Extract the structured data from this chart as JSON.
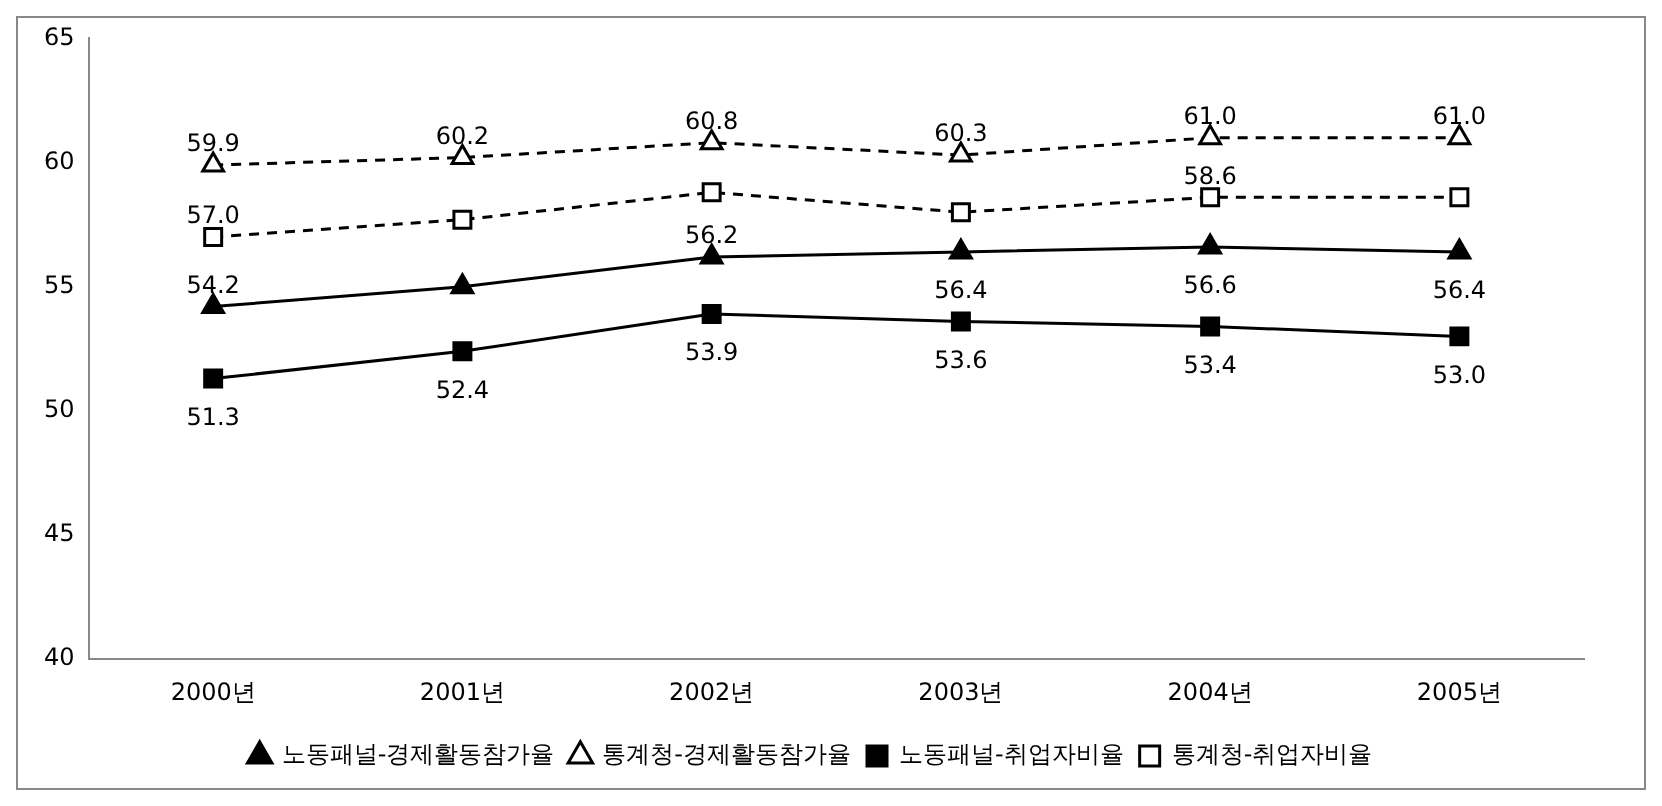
{
  "chart_data": {
    "type": "line",
    "categories": [
      "2000년",
      "2001년",
      "2002년",
      "2003년",
      "2004년",
      "2005년"
    ],
    "series": [
      {
        "name": "노동패널-경제활동참가율",
        "color": "#000000",
        "marker": "triangle",
        "line_style": "solid",
        "values": [
          54.2,
          55.0,
          56.2,
          56.4,
          56.6,
          56.4
        ],
        "value_labels": [
          "54.2",
          null,
          "56.2",
          "56.4",
          "56.6",
          "56.4"
        ]
      },
      {
        "name": "통계청-경제활동참가율",
        "color": "#000000",
        "marker": "triangle",
        "line_style": "dashed",
        "values": [
          59.9,
          60.2,
          60.8,
          60.3,
          61.0,
          61.0
        ],
        "value_labels": [
          "59.9",
          "60.2",
          "60.8",
          "60.3",
          "61.0",
          "61.0"
        ]
      },
      {
        "name": "노동패널-취업자비율",
        "color": "#000000",
        "marker": "square",
        "line_style": "solid",
        "values": [
          51.3,
          52.4,
          53.9,
          53.6,
          53.4,
          53.0
        ],
        "value_labels": [
          "51.3",
          "52.4",
          "53.9",
          "53.6",
          "53.4",
          "53.0"
        ]
      },
      {
        "name": "통계청-취업자비율",
        "color": "#000000",
        "marker": "square",
        "line_style": "dashed",
        "values": [
          57.0,
          57.7,
          58.8,
          58.0,
          58.6,
          58.6
        ],
        "value_labels": [
          "57.0",
          null,
          null,
          null,
          "58.6",
          null
        ]
      }
    ],
    "ylim": [
      40,
      65
    ],
    "yticks": [
      40,
      45,
      50,
      55,
      60,
      65
    ],
    "grid": false,
    "legend": "bottom"
  }
}
